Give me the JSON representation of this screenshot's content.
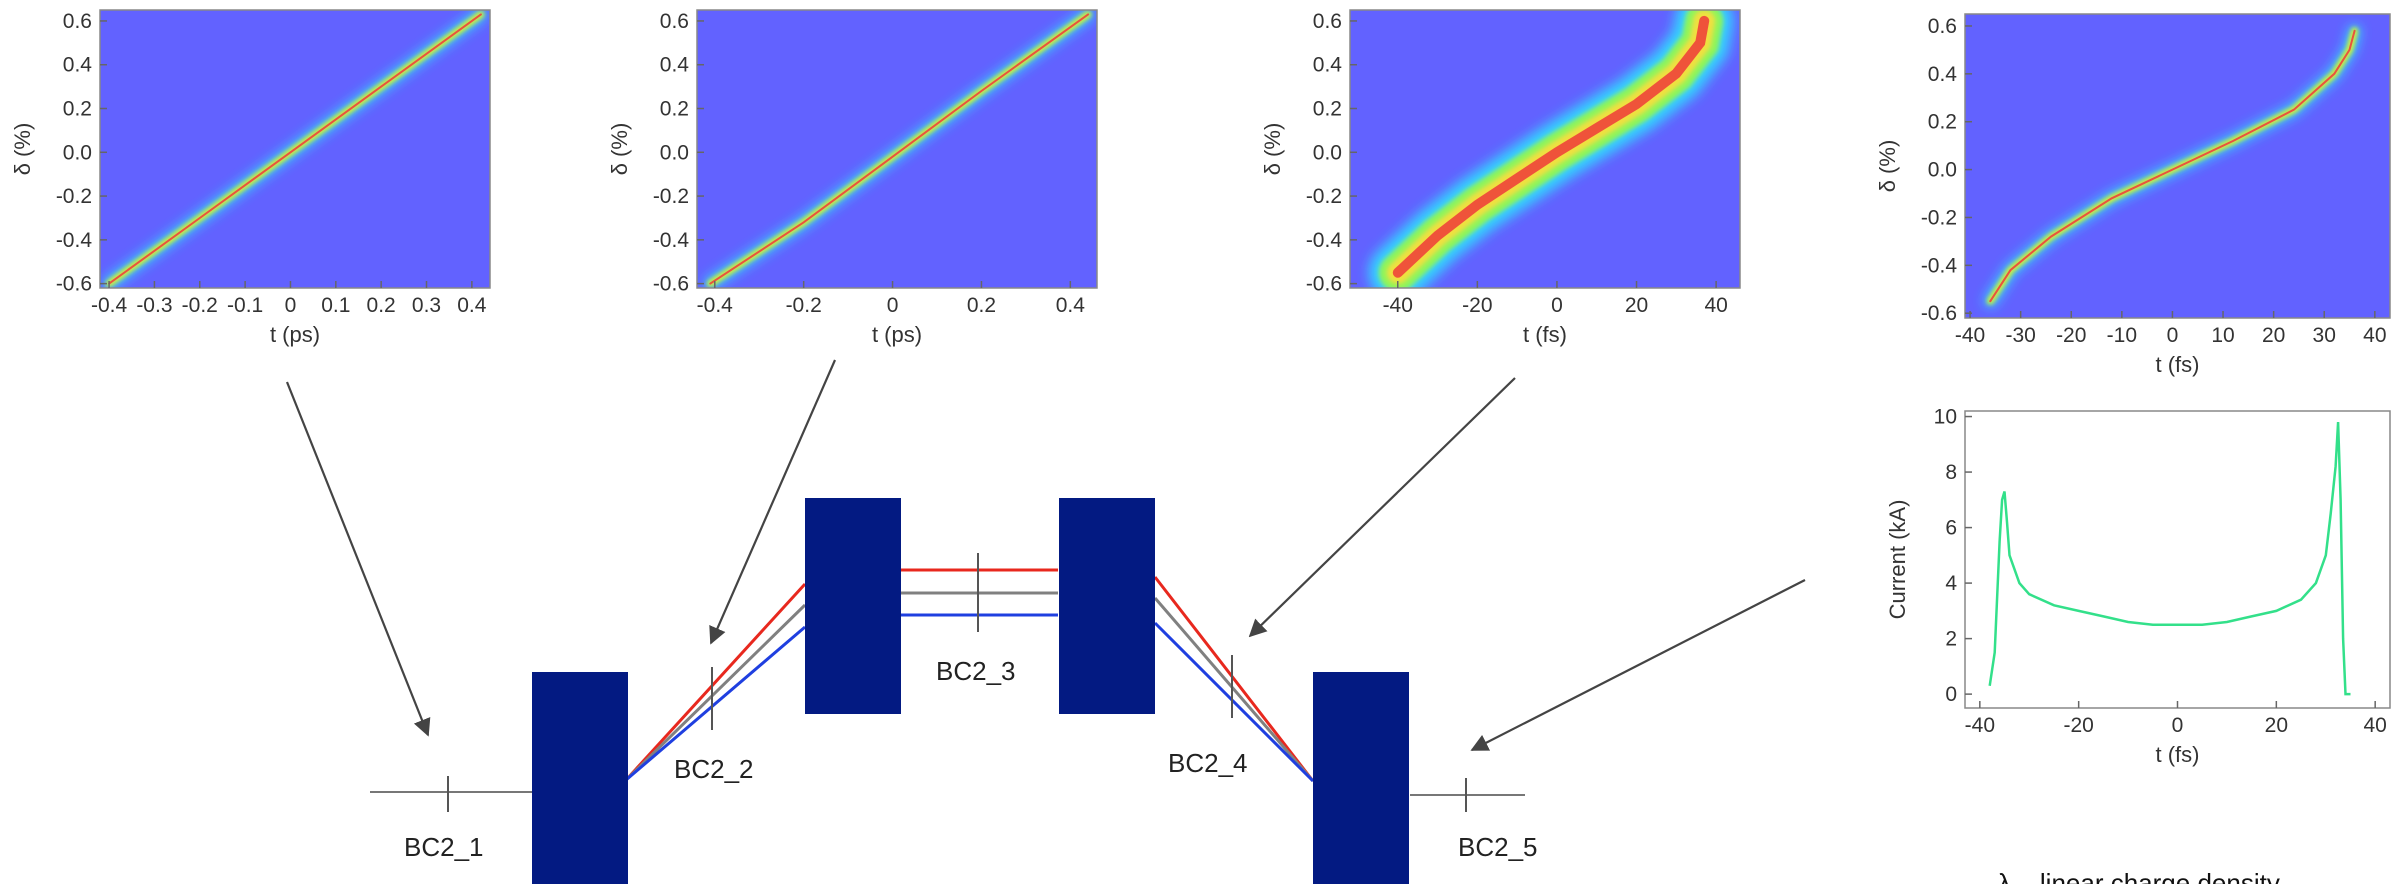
{
  "colors": {
    "phase_space_bg": "#6262ff",
    "dipole": "#031a82",
    "orbit_high": "#e8281e",
    "orbit_ref": "#808080",
    "orbit_low": "#1f3fe0",
    "current_line": "#33e08a",
    "arrow": "#444444"
  },
  "stations": [
    "BC2_1",
    "BC2_2",
    "BC2_3",
    "BC2_4",
    "BC2_5"
  ],
  "note": "λ – linear charge density",
  "chart_data": [
    {
      "type": "heatmap",
      "xlabel": "t (ps)",
      "ylabel": "δ (%)",
      "xlim": [
        -0.42,
        0.44
      ],
      "ylim": [
        -0.62,
        0.65
      ],
      "xticks": [
        -0.4,
        -0.3,
        -0.2,
        -0.1,
        0,
        0.1,
        0.2,
        0.3,
        0.4
      ],
      "xtick_labels": [
        "-0.4",
        "-0.3",
        "-0.2",
        "-0.1",
        "0",
        "0.1",
        "0.2",
        "0.3",
        "0.4"
      ],
      "yticks": [
        -0.6,
        -0.4,
        -0.2,
        0.0,
        0.2,
        0.4,
        0.6
      ],
      "ytick_labels": [
        "-0.6",
        "-0.4",
        "-0.2",
        "0.0",
        "0.2",
        "0.4",
        "0.6"
      ],
      "curve": [
        [
          -0.4,
          -0.6
        ],
        [
          -0.2,
          -0.3
        ],
        [
          0,
          0.0
        ],
        [
          0.2,
          0.3
        ],
        [
          0.42,
          0.63
        ]
      ],
      "station": "BC2_1"
    },
    {
      "type": "heatmap",
      "xlabel": "t (ps)",
      "ylabel": "δ (%)",
      "xlim": [
        -0.44,
        0.46
      ],
      "ylim": [
        -0.62,
        0.65
      ],
      "xticks": [
        -0.4,
        -0.2,
        0,
        0.2,
        0.4
      ],
      "xtick_labels": [
        "-0.4",
        "-0.2",
        "0",
        "0.2",
        "0.4"
      ],
      "yticks": [
        -0.6,
        -0.4,
        -0.2,
        0.0,
        0.2,
        0.4,
        0.6
      ],
      "ytick_labels": [
        "-0.6",
        "-0.4",
        "-0.2",
        "0.0",
        "0.2",
        "0.4",
        "0.6"
      ],
      "curve": [
        [
          -0.41,
          -0.6
        ],
        [
          -0.2,
          -0.32
        ],
        [
          0,
          -0.02
        ],
        [
          0.2,
          0.28
        ],
        [
          0.44,
          0.63
        ]
      ],
      "station": "BC2_2"
    },
    {
      "type": "heatmap",
      "xlabel": "t (fs)",
      "ylabel": "δ (%)",
      "xlim": [
        -52,
        46
      ],
      "ylim": [
        -0.62,
        0.65
      ],
      "xticks": [
        -40,
        -20,
        0,
        20,
        40
      ],
      "xtick_labels": [
        "-40",
        "-20",
        "0",
        "20",
        "40"
      ],
      "yticks": [
        -0.6,
        -0.4,
        -0.2,
        0.0,
        0.2,
        0.4,
        0.6
      ],
      "ytick_labels": [
        "-0.6",
        "-0.4",
        "-0.2",
        "0.0",
        "0.2",
        "0.4",
        "0.6"
      ],
      "curve": [
        [
          -40,
          -0.55
        ],
        [
          -30,
          -0.38
        ],
        [
          -20,
          -0.24
        ],
        [
          -10,
          -0.12
        ],
        [
          0,
          0.0
        ],
        [
          10,
          0.11
        ],
        [
          20,
          0.22
        ],
        [
          30,
          0.36
        ],
        [
          36,
          0.5
        ],
        [
          37,
          0.6
        ]
      ],
      "station": "BC2_4"
    },
    {
      "type": "heatmap",
      "xlabel": "t (fs)",
      "ylabel": "δ (%)",
      "xlim": [
        -41,
        43
      ],
      "ylim": [
        -0.62,
        0.65
      ],
      "xticks": [
        -40,
        -30,
        -20,
        -10,
        0,
        10,
        20,
        30,
        40
      ],
      "xtick_labels": [
        "-40",
        "-30",
        "-20",
        "-10",
        "0",
        "10",
        "20",
        "30",
        "40"
      ],
      "yticks": [
        -0.6,
        -0.4,
        -0.2,
        0.0,
        0.2,
        0.4,
        0.6
      ],
      "ytick_labels": [
        "-0.6",
        "-0.4",
        "-0.2",
        "0.0",
        "0.2",
        "0.4",
        "0.6"
      ],
      "curve": [
        [
          -36,
          -0.55
        ],
        [
          -32,
          -0.42
        ],
        [
          -24,
          -0.28
        ],
        [
          -12,
          -0.12
        ],
        [
          0,
          0.0
        ],
        [
          12,
          0.12
        ],
        [
          24,
          0.25
        ],
        [
          32,
          0.4
        ],
        [
          35,
          0.5
        ],
        [
          36,
          0.58
        ]
      ],
      "station": "BC2_5"
    },
    {
      "type": "line",
      "xlabel": "t (fs)",
      "ylabel": "Current (kA)",
      "xlim": [
        -43,
        43
      ],
      "ylim": [
        -0.5,
        10.2
      ],
      "xticks": [
        -40,
        -20,
        0,
        20,
        40
      ],
      "xtick_labels": [
        "-40",
        "-20",
        "0",
        "20",
        "40"
      ],
      "yticks": [
        0,
        2,
        4,
        6,
        8,
        10
      ],
      "ytick_labels": [
        "0",
        "2",
        "4",
        "6",
        "8",
        "10"
      ],
      "x": [
        -38,
        -37,
        -36,
        -35.5,
        -35,
        -34.5,
        -34,
        -32,
        -30,
        -25,
        -20,
        -15,
        -10,
        -5,
        0,
        5,
        10,
        15,
        20,
        25,
        28,
        30,
        31,
        32,
        32.5,
        33,
        33.5,
        34,
        35
      ],
      "values": [
        0.3,
        1.5,
        5.5,
        7.0,
        7.3,
        6.2,
        5.0,
        4.0,
        3.6,
        3.2,
        3.0,
        2.8,
        2.6,
        2.5,
        2.5,
        2.5,
        2.6,
        2.8,
        3.0,
        3.4,
        4.0,
        5.0,
        6.5,
        8.2,
        9.8,
        7.0,
        2.0,
        0.0,
        0.0
      ],
      "station": "BC2_5"
    }
  ]
}
